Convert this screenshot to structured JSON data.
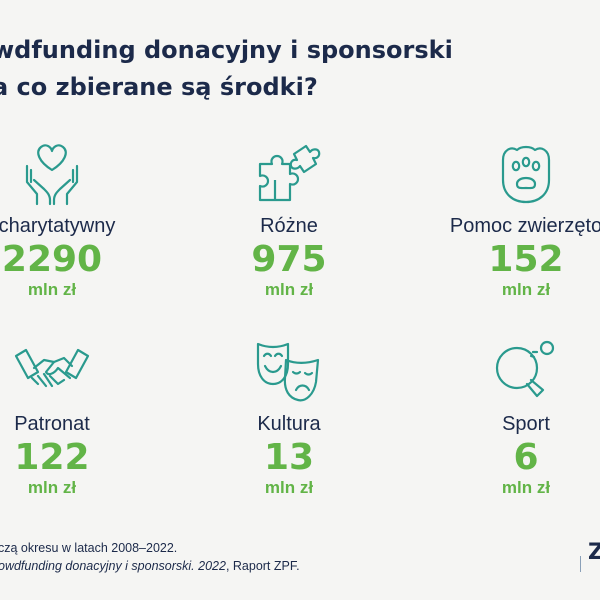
{
  "title": {
    "line1": "wdfunding donacyjny i sponsorski",
    "line2": "a co zbierane są środki?"
  },
  "categories": [
    {
      "label": "l charytatywny",
      "value": "2290",
      "unit": "mln zł",
      "icon": "hands-heart-icon"
    },
    {
      "label": "Różne",
      "value": "975",
      "unit": "mln zł",
      "icon": "puzzle-icon"
    },
    {
      "label": "Pomoc zwierzęto",
      "value": "152",
      "unit": "mln zł",
      "icon": "paw-icon"
    },
    {
      "label": "Patronat",
      "value": "122",
      "unit": "mln zł",
      "icon": "handshake-icon"
    },
    {
      "label": "Kultura",
      "value": "13",
      "unit": "mln zł",
      "icon": "theater-masks-icon"
    },
    {
      "label": "Sport",
      "value": "6",
      "unit": "mln zł",
      "icon": "ping-pong-icon"
    }
  ],
  "notes": {
    "line1": "czą okresu w latach 2008–2022.",
    "line2_italic": "owdfunding donacyjny i sponsorski. 2022",
    "line2_rest": ", Raport ZPF."
  },
  "logo": "Z",
  "colors": {
    "accent": "#62b447",
    "icon": "#2a9a8e",
    "text": "#1c2a4a",
    "background": "#f5f5f3"
  }
}
